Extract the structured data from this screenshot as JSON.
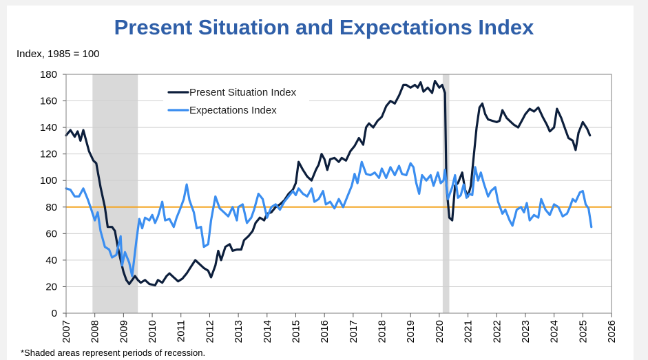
{
  "chart_data": {
    "type": "line",
    "title": "Present Situation and Expectations Index",
    "ylabel": "Index, 1985 = 100",
    "xlim": [
      2007,
      2026
    ],
    "ylim": [
      0,
      180
    ],
    "x_ticks": [
      "2007",
      "2008",
      "2009",
      "2010",
      "2011",
      "2012",
      "2013",
      "2014",
      "2015",
      "2016",
      "2017",
      "2018",
      "2019",
      "2020",
      "2021",
      "2022",
      "2023",
      "2024",
      "2025",
      "2026"
    ],
    "y_ticks": [
      "0",
      "20",
      "40",
      "60",
      "80",
      "100",
      "120",
      "140",
      "160",
      "180"
    ],
    "reference_line": 80,
    "recessions": [
      [
        2007.92,
        2009.5
      ],
      [
        2020.12,
        2020.35
      ]
    ],
    "footnote": "*Shaded areas represent periods of recession.",
    "legend_position": "top-left",
    "grid": "horizontal",
    "colors": {
      "present": "#0d1f3c",
      "expectations": "#3b8ef0",
      "reference": "#f4a623",
      "recession": "#d9d9d9",
      "title": "#2f5fa8"
    },
    "series": [
      {
        "name": "Present Situation Index",
        "color": "#0d1f3c",
        "points": [
          [
            2007.0,
            134
          ],
          [
            2007.15,
            138
          ],
          [
            2007.3,
            133
          ],
          [
            2007.4,
            137
          ],
          [
            2007.5,
            130
          ],
          [
            2007.6,
            138
          ],
          [
            2007.8,
            122
          ],
          [
            2007.95,
            115
          ],
          [
            2008.05,
            113
          ],
          [
            2008.2,
            95
          ],
          [
            2008.35,
            80
          ],
          [
            2008.45,
            65
          ],
          [
            2008.6,
            65
          ],
          [
            2008.7,
            62
          ],
          [
            2008.8,
            50
          ],
          [
            2008.9,
            40
          ],
          [
            2009.0,
            31
          ],
          [
            2009.1,
            25
          ],
          [
            2009.2,
            22
          ],
          [
            2009.3,
            25
          ],
          [
            2009.4,
            28
          ],
          [
            2009.5,
            25
          ],
          [
            2009.6,
            23
          ],
          [
            2009.75,
            25
          ],
          [
            2009.9,
            22
          ],
          [
            2010.1,
            21
          ],
          [
            2010.2,
            25
          ],
          [
            2010.35,
            23
          ],
          [
            2010.5,
            28
          ],
          [
            2010.6,
            30
          ],
          [
            2010.75,
            27
          ],
          [
            2010.9,
            24
          ],
          [
            2011.05,
            26
          ],
          [
            2011.2,
            30
          ],
          [
            2011.35,
            35
          ],
          [
            2011.5,
            40
          ],
          [
            2011.65,
            37
          ],
          [
            2011.8,
            34
          ],
          [
            2011.95,
            32
          ],
          [
            2012.05,
            27
          ],
          [
            2012.2,
            36
          ],
          [
            2012.3,
            47
          ],
          [
            2012.4,
            40
          ],
          [
            2012.55,
            50
          ],
          [
            2012.7,
            52
          ],
          [
            2012.8,
            47
          ],
          [
            2012.95,
            48
          ],
          [
            2013.1,
            48
          ],
          [
            2013.2,
            55
          ],
          [
            2013.35,
            58
          ],
          [
            2013.5,
            62
          ],
          [
            2013.6,
            68
          ],
          [
            2013.75,
            72
          ],
          [
            2013.9,
            70
          ],
          [
            2014.0,
            75
          ],
          [
            2014.15,
            76
          ],
          [
            2014.3,
            80
          ],
          [
            2014.45,
            82
          ],
          [
            2014.6,
            85
          ],
          [
            2014.75,
            90
          ],
          [
            2014.9,
            93
          ],
          [
            2015.0,
            98
          ],
          [
            2015.1,
            114
          ],
          [
            2015.25,
            108
          ],
          [
            2015.4,
            103
          ],
          [
            2015.55,
            100
          ],
          [
            2015.7,
            108
          ],
          [
            2015.8,
            112
          ],
          [
            2015.9,
            120
          ],
          [
            2016.0,
            116
          ],
          [
            2016.1,
            108
          ],
          [
            2016.2,
            116
          ],
          [
            2016.35,
            117
          ],
          [
            2016.5,
            114
          ],
          [
            2016.6,
            117
          ],
          [
            2016.75,
            115
          ],
          [
            2016.9,
            122
          ],
          [
            2017.05,
            126
          ],
          [
            2017.2,
            132
          ],
          [
            2017.35,
            127
          ],
          [
            2017.45,
            140
          ],
          [
            2017.55,
            143
          ],
          [
            2017.7,
            140
          ],
          [
            2017.85,
            145
          ],
          [
            2018.0,
            148
          ],
          [
            2018.15,
            156
          ],
          [
            2018.3,
            160
          ],
          [
            2018.45,
            158
          ],
          [
            2018.6,
            164
          ],
          [
            2018.75,
            172
          ],
          [
            2018.85,
            172
          ],
          [
            2019.0,
            170
          ],
          [
            2019.15,
            172
          ],
          [
            2019.25,
            170
          ],
          [
            2019.35,
            174
          ],
          [
            2019.45,
            167
          ],
          [
            2019.6,
            170
          ],
          [
            2019.75,
            166
          ],
          [
            2019.85,
            175
          ],
          [
            2020.0,
            170
          ],
          [
            2020.1,
            172
          ],
          [
            2020.2,
            166
          ],
          [
            2020.25,
            96
          ],
          [
            2020.35,
            72
          ],
          [
            2020.45,
            70
          ],
          [
            2020.55,
            96
          ],
          [
            2020.65,
            98
          ],
          [
            2020.8,
            106
          ],
          [
            2020.9,
            93
          ],
          [
            2021.0,
            88
          ],
          [
            2021.1,
            96
          ],
          [
            2021.2,
            118
          ],
          [
            2021.3,
            140
          ],
          [
            2021.4,
            155
          ],
          [
            2021.5,
            158
          ],
          [
            2021.6,
            150
          ],
          [
            2021.7,
            146
          ],
          [
            2021.85,
            145
          ],
          [
            2022.0,
            144
          ],
          [
            2022.1,
            145
          ],
          [
            2022.2,
            153
          ],
          [
            2022.35,
            147
          ],
          [
            2022.5,
            144
          ],
          [
            2022.6,
            142
          ],
          [
            2022.75,
            140
          ],
          [
            2022.9,
            146
          ],
          [
            2023.0,
            150
          ],
          [
            2023.15,
            154
          ],
          [
            2023.3,
            152
          ],
          [
            2023.45,
            155
          ],
          [
            2023.6,
            148
          ],
          [
            2023.75,
            142
          ],
          [
            2023.85,
            137
          ],
          [
            2024.0,
            140
          ],
          [
            2024.1,
            154
          ],
          [
            2024.25,
            147
          ],
          [
            2024.4,
            138
          ],
          [
            2024.5,
            132
          ],
          [
            2024.65,
            130
          ],
          [
            2024.75,
            123
          ],
          [
            2024.85,
            136
          ],
          [
            2025.0,
            144
          ],
          [
            2025.15,
            139
          ],
          [
            2025.25,
            134
          ]
        ]
      },
      {
        "name": "Expectations Index",
        "color": "#3b8ef0",
        "points": [
          [
            2007.0,
            94
          ],
          [
            2007.15,
            93
          ],
          [
            2007.3,
            88
          ],
          [
            2007.45,
            88
          ],
          [
            2007.6,
            94
          ],
          [
            2007.75,
            86
          ],
          [
            2007.85,
            80
          ],
          [
            2008.0,
            70
          ],
          [
            2008.1,
            76
          ],
          [
            2008.2,
            62
          ],
          [
            2008.35,
            50
          ],
          [
            2008.5,
            48
          ],
          [
            2008.6,
            42
          ],
          [
            2008.75,
            44
          ],
          [
            2008.9,
            58
          ],
          [
            2008.95,
            36
          ],
          [
            2009.05,
            46
          ],
          [
            2009.2,
            38
          ],
          [
            2009.3,
            28
          ],
          [
            2009.45,
            55
          ],
          [
            2009.55,
            71
          ],
          [
            2009.65,
            64
          ],
          [
            2009.75,
            72
          ],
          [
            2009.9,
            70
          ],
          [
            2010.0,
            74
          ],
          [
            2010.1,
            68
          ],
          [
            2010.2,
            73
          ],
          [
            2010.35,
            84
          ],
          [
            2010.45,
            70
          ],
          [
            2010.6,
            71
          ],
          [
            2010.75,
            65
          ],
          [
            2010.85,
            72
          ],
          [
            2011.0,
            80
          ],
          [
            2011.1,
            86
          ],
          [
            2011.2,
            97
          ],
          [
            2011.3,
            85
          ],
          [
            2011.45,
            76
          ],
          [
            2011.55,
            64
          ],
          [
            2011.7,
            65
          ],
          [
            2011.8,
            50
          ],
          [
            2011.95,
            52
          ],
          [
            2012.05,
            70
          ],
          [
            2012.2,
            88
          ],
          [
            2012.35,
            79
          ],
          [
            2012.5,
            76
          ],
          [
            2012.65,
            73
          ],
          [
            2012.8,
            80
          ],
          [
            2012.95,
            70
          ],
          [
            2013.0,
            80
          ],
          [
            2013.15,
            82
          ],
          [
            2013.3,
            68
          ],
          [
            2013.45,
            72
          ],
          [
            2013.55,
            78
          ],
          [
            2013.7,
            90
          ],
          [
            2013.85,
            86
          ],
          [
            2014.0,
            72
          ],
          [
            2014.15,
            80
          ],
          [
            2014.3,
            82
          ],
          [
            2014.45,
            78
          ],
          [
            2014.6,
            84
          ],
          [
            2014.75,
            88
          ],
          [
            2014.9,
            92
          ],
          [
            2015.0,
            89
          ],
          [
            2015.1,
            94
          ],
          [
            2015.25,
            90
          ],
          [
            2015.4,
            88
          ],
          [
            2015.55,
            94
          ],
          [
            2015.65,
            84
          ],
          [
            2015.8,
            86
          ],
          [
            2015.95,
            92
          ],
          [
            2016.05,
            82
          ],
          [
            2016.2,
            84
          ],
          [
            2016.35,
            79
          ],
          [
            2016.5,
            86
          ],
          [
            2016.65,
            80
          ],
          [
            2016.8,
            88
          ],
          [
            2016.95,
            96
          ],
          [
            2017.05,
            105
          ],
          [
            2017.15,
            98
          ],
          [
            2017.3,
            114
          ],
          [
            2017.45,
            105
          ],
          [
            2017.6,
            104
          ],
          [
            2017.75,
            106
          ],
          [
            2017.9,
            102
          ],
          [
            2018.0,
            109
          ],
          [
            2018.15,
            102
          ],
          [
            2018.3,
            110
          ],
          [
            2018.45,
            104
          ],
          [
            2018.6,
            111
          ],
          [
            2018.7,
            105
          ],
          [
            2018.85,
            104
          ],
          [
            2019.0,
            113
          ],
          [
            2019.1,
            110
          ],
          [
            2019.2,
            98
          ],
          [
            2019.3,
            90
          ],
          [
            2019.4,
            104
          ],
          [
            2019.55,
            100
          ],
          [
            2019.7,
            104
          ],
          [
            2019.8,
            96
          ],
          [
            2019.95,
            106
          ],
          [
            2020.05,
            98
          ],
          [
            2020.15,
            100
          ],
          [
            2020.2,
            108
          ],
          [
            2020.3,
            86
          ],
          [
            2020.45,
            95
          ],
          [
            2020.55,
            104
          ],
          [
            2020.65,
            87
          ],
          [
            2020.75,
            89
          ],
          [
            2020.85,
            97
          ],
          [
            2020.95,
            87
          ],
          [
            2021.05,
            90
          ],
          [
            2021.15,
            89
          ],
          [
            2021.25,
            110
          ],
          [
            2021.35,
            100
          ],
          [
            2021.45,
            106
          ],
          [
            2021.55,
            98
          ],
          [
            2021.7,
            88
          ],
          [
            2021.8,
            92
          ],
          [
            2021.95,
            95
          ],
          [
            2022.05,
            84
          ],
          [
            2022.2,
            75
          ],
          [
            2022.3,
            78
          ],
          [
            2022.45,
            70
          ],
          [
            2022.55,
            66
          ],
          [
            2022.7,
            78
          ],
          [
            2022.85,
            80
          ],
          [
            2022.95,
            76
          ],
          [
            2023.05,
            83
          ],
          [
            2023.15,
            70
          ],
          [
            2023.3,
            74
          ],
          [
            2023.45,
            72
          ],
          [
            2023.55,
            86
          ],
          [
            2023.7,
            78
          ],
          [
            2023.85,
            74
          ],
          [
            2024.0,
            82
          ],
          [
            2024.15,
            80
          ],
          [
            2024.3,
            73
          ],
          [
            2024.45,
            75
          ],
          [
            2024.55,
            80
          ],
          [
            2024.65,
            86
          ],
          [
            2024.75,
            84
          ],
          [
            2024.9,
            91
          ],
          [
            2025.0,
            92
          ],
          [
            2025.1,
            82
          ],
          [
            2025.2,
            79
          ],
          [
            2025.3,
            65
          ]
        ]
      }
    ]
  }
}
